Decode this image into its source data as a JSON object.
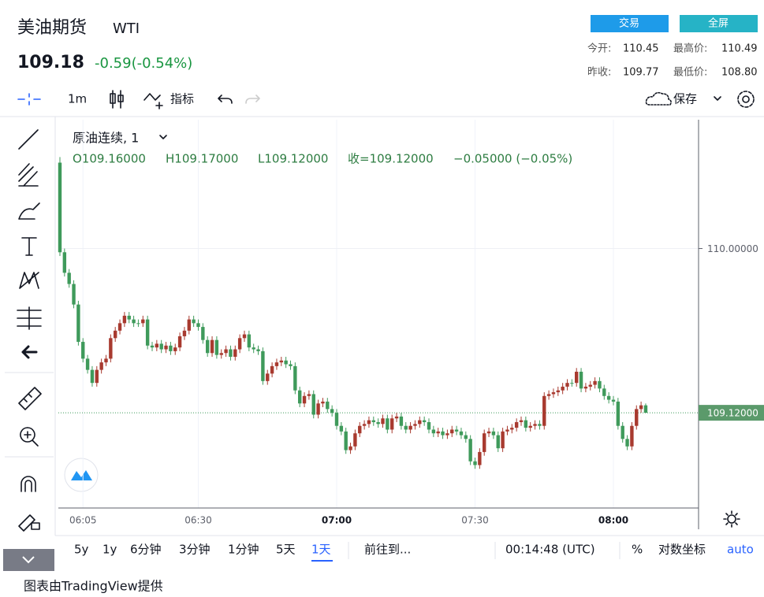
{
  "header": {
    "title": "美油期货",
    "symbol": "WTI",
    "price": "109.18",
    "change": "-0.59(-0.54%)",
    "buttons": [
      "交易",
      "全屏"
    ],
    "stats": [
      [
        "今开:",
        "110.45",
        "最高价:",
        "110.49"
      ],
      [
        "昨收:",
        "109.77",
        "最低价:",
        "108.80"
      ]
    ]
  },
  "toolbar": {
    "interval": "1m",
    "indicators": "指标",
    "save": "保存"
  },
  "legend": {
    "name": "原油连续, 1",
    "open": "O109.16000",
    "high": "H109.17000",
    "low": "L109.12000",
    "close": "收=109.12000",
    "change": "−0.05000 (−0.05%)"
  },
  "bottom_bar": {
    "ranges": [
      "5y",
      "1y",
      "6分钟",
      "3分钟",
      "1分钟",
      "5天",
      "1天"
    ],
    "goto": "前往到...",
    "clock": "00:14:48 (UTC)",
    "percent": "%",
    "log": "对数坐标",
    "auto": "auto"
  },
  "footer": "图表由TradingView提供",
  "chart_data": {
    "type": "candlestick",
    "up_color": "#a83a2f",
    "down_color": "#3f9a5b",
    "grid": true,
    "xlim": [
      -0.34,
      138.46
    ],
    "xticks": [
      {
        "value": 5,
        "label": "06:05"
      },
      {
        "value": 30,
        "label": "06:30"
      },
      {
        "value": 60,
        "label": "07:00"
      },
      {
        "value": 90,
        "label": "07:30"
      },
      {
        "value": 120,
        "label": "08:00"
      }
    ],
    "ylim": [
      108.61,
      110.69
    ],
    "yticks": [
      {
        "value": 110,
        "label": "110.00000"
      }
    ],
    "last_price": {
      "value": 109.12,
      "label": "109.12000"
    },
    "open": [
      110.46,
      109.98,
      109.87,
      109.81,
      109.7,
      109.5,
      109.41,
      109.35,
      109.28,
      109.35,
      109.39,
      109.41,
      109.52,
      109.56,
      109.6,
      109.64,
      109.62,
      109.6,
      109.6,
      109.62,
      109.48,
      109.47,
      109.49,
      109.46,
      109.48,
      109.45,
      109.47,
      109.53,
      109.56,
      109.62,
      109.6,
      109.58,
      109.51,
      109.44,
      109.51,
      109.43,
      109.44,
      109.46,
      109.42,
      109.46,
      109.52,
      109.54,
      109.47,
      109.46,
      109.45,
      109.29,
      109.33,
      109.37,
      109.39,
      109.4,
      109.38,
      109.37,
      109.24,
      109.17,
      109.21,
      109.22,
      109.11,
      109.17,
      109.18,
      109.14,
      109.12,
      109.05,
      109.02,
      108.92,
      108.94,
      109.01,
      109.05,
      109.06,
      109.08,
      109.07,
      109.06,
      109.09,
      109.03,
      109.09,
      109.1,
      109.05,
      109.03,
      109.05,
      109.06,
      109.08,
      109.07,
      109.03,
      109.01,
      109.02,
      109.0,
      109.01,
      109.03,
      109.02,
      109.0,
      108.98,
      108.86,
      108.84,
      108.91,
      109.01,
      109.02,
      109.0,
      108.93,
      109.02,
      109.03,
      109.04,
      109.07,
      109.08,
      109.04,
      109.05,
      109.06,
      109.05,
      109.21,
      109.22,
      109.23,
      109.24,
      109.26,
      109.28,
      109.28,
      109.34,
      109.25,
      109.26,
      109.27,
      109.29,
      109.25,
      109.21,
      109.19,
      109.18,
      109.05,
      108.98,
      108.94,
      109.05,
      109.14,
      109.16
    ],
    "high": [
      110.49,
      110.0,
      109.89,
      109.83,
      109.72,
      109.52,
      109.43,
      109.37,
      109.37,
      109.41,
      109.43,
      109.54,
      109.58,
      109.62,
      109.66,
      109.66,
      109.64,
      109.62,
      109.64,
      109.64,
      109.5,
      109.51,
      109.51,
      109.5,
      109.5,
      109.49,
      109.55,
      109.58,
      109.64,
      109.64,
      109.62,
      109.6,
      109.53,
      109.53,
      109.53,
      109.46,
      109.48,
      109.48,
      109.48,
      109.54,
      109.56,
      109.56,
      109.49,
      109.48,
      109.47,
      109.35,
      109.39,
      109.41,
      109.42,
      109.42,
      109.4,
      109.39,
      109.26,
      109.23,
      109.24,
      109.24,
      109.19,
      109.2,
      109.2,
      109.16,
      109.14,
      109.07,
      109.04,
      108.96,
      109.03,
      109.07,
      109.08,
      109.1,
      109.1,
      109.09,
      109.11,
      109.11,
      109.11,
      109.12,
      109.12,
      109.07,
      109.07,
      109.08,
      109.1,
      109.1,
      109.09,
      109.05,
      109.04,
      109.04,
      109.03,
      109.05,
      109.05,
      109.04,
      109.02,
      109.0,
      108.88,
      108.93,
      109.03,
      109.04,
      109.04,
      109.02,
      109.04,
      109.05,
      109.06,
      109.09,
      109.1,
      109.1,
      109.07,
      109.08,
      109.08,
      109.23,
      109.24,
      109.25,
      109.26,
      109.28,
      109.3,
      109.3,
      109.36,
      109.36,
      109.28,
      109.29,
      109.31,
      109.31,
      109.27,
      109.23,
      109.21,
      109.2,
      109.07,
      109.0,
      109.07,
      109.16,
      109.18,
      109.17
    ],
    "low": [
      109.96,
      109.85,
      109.79,
      109.68,
      109.48,
      109.39,
      109.33,
      109.26,
      109.26,
      109.33,
      109.37,
      109.39,
      109.5,
      109.54,
      109.58,
      109.6,
      109.58,
      109.58,
      109.58,
      109.46,
      109.45,
      109.45,
      109.44,
      109.44,
      109.43,
      109.43,
      109.45,
      109.51,
      109.54,
      109.58,
      109.56,
      109.49,
      109.42,
      109.42,
      109.41,
      109.41,
      109.42,
      109.4,
      109.4,
      109.44,
      109.5,
      109.45,
      109.44,
      109.43,
      109.27,
      109.27,
      109.31,
      109.35,
      109.37,
      109.36,
      109.35,
      109.22,
      109.15,
      109.15,
      109.19,
      109.09,
      109.09,
      109.15,
      109.12,
      109.1,
      109.03,
      109.0,
      108.9,
      108.9,
      108.92,
      108.99,
      109.03,
      109.04,
      109.05,
      109.04,
      109.04,
      109.01,
      109.01,
      109.07,
      109.03,
      109.01,
      109.01,
      109.03,
      109.04,
      109.05,
      109.01,
      108.99,
      108.99,
      108.98,
      108.98,
      108.99,
      109.0,
      108.98,
      108.96,
      108.84,
      108.82,
      108.82,
      108.89,
      108.99,
      108.98,
      108.91,
      108.91,
      109.0,
      109.01,
      109.02,
      109.05,
      109.02,
      109.02,
      109.03,
      109.03,
      109.03,
      109.19,
      109.2,
      109.21,
      109.22,
      109.24,
      109.26,
      109.26,
      109.23,
      109.23,
      109.24,
      109.25,
      109.23,
      109.19,
      109.17,
      109.16,
      109.03,
      108.96,
      108.92,
      108.92,
      109.03,
      109.12,
      109.12
    ],
    "close": [
      109.98,
      109.87,
      109.81,
      109.7,
      109.5,
      109.41,
      109.35,
      109.28,
      109.35,
      109.39,
      109.41,
      109.52,
      109.56,
      109.6,
      109.64,
      109.62,
      109.6,
      109.6,
      109.62,
      109.48,
      109.47,
      109.49,
      109.46,
      109.48,
      109.45,
      109.47,
      109.53,
      109.56,
      109.62,
      109.6,
      109.58,
      109.51,
      109.44,
      109.51,
      109.43,
      109.44,
      109.46,
      109.42,
      109.46,
      109.52,
      109.54,
      109.47,
      109.46,
      109.45,
      109.29,
      109.33,
      109.37,
      109.39,
      109.4,
      109.38,
      109.37,
      109.24,
      109.17,
      109.21,
      109.22,
      109.11,
      109.17,
      109.18,
      109.14,
      109.12,
      109.05,
      109.02,
      108.92,
      108.94,
      109.01,
      109.05,
      109.06,
      109.08,
      109.07,
      109.06,
      109.09,
      109.03,
      109.09,
      109.1,
      109.05,
      109.03,
      109.05,
      109.06,
      109.08,
      109.07,
      109.03,
      109.01,
      109.02,
      109.0,
      109.01,
      109.03,
      109.02,
      109.0,
      108.98,
      108.86,
      108.84,
      108.91,
      109.01,
      109.02,
      109.0,
      108.93,
      109.02,
      109.03,
      109.04,
      109.07,
      109.08,
      109.04,
      109.05,
      109.06,
      109.05,
      109.21,
      109.22,
      109.23,
      109.24,
      109.26,
      109.28,
      109.28,
      109.34,
      109.25,
      109.26,
      109.27,
      109.29,
      109.25,
      109.21,
      109.19,
      109.18,
      109.05,
      108.98,
      108.94,
      109.05,
      109.14,
      109.16,
      109.12
    ]
  }
}
